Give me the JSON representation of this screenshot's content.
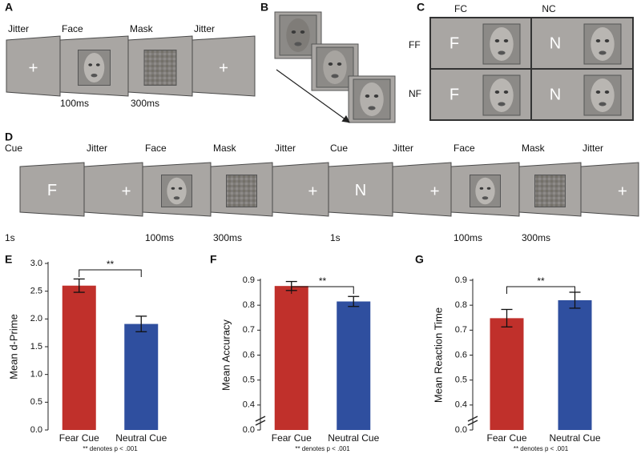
{
  "panels": {
    "A": {
      "label": "A",
      "frame_labels": [
        "Jitter",
        "Face",
        "Mask",
        "Jitter"
      ],
      "durations": [
        "100ms",
        "300ms"
      ]
    },
    "B": {
      "label": "B"
    },
    "C": {
      "label": "C",
      "columns": [
        "FC",
        "NC"
      ],
      "rows": [
        "FF",
        "NF"
      ],
      "cue_letters": [
        [
          "F",
          "N"
        ],
        [
          "F",
          "N"
        ]
      ]
    },
    "D": {
      "label": "D",
      "frame_labels": [
        "Cue",
        "Jitter",
        "Face",
        "Mask",
        "Jitter",
        "Cue",
        "Jitter",
        "Face",
        "Mask",
        "Jitter"
      ],
      "cue_letters": [
        "F",
        "N"
      ],
      "durations": [
        "1s",
        "100ms",
        "300ms",
        "1s",
        "100ms",
        "300ms"
      ]
    }
  },
  "chart_data": [
    {
      "type": "bar",
      "panel": "E",
      "ylabel": "Mean d-Prime",
      "categories": [
        "Fear Cue",
        "Neutral Cue"
      ],
      "values": [
        2.6,
        1.91
      ],
      "errors": [
        0.12,
        0.14
      ],
      "colors": [
        "#c0302b",
        "#2f4f9f"
      ],
      "ylim": [
        0,
        3
      ],
      "yticks": [
        {
          "value": 0,
          "label": "0.0"
        },
        0.5,
        {
          "value": 1,
          "label": "1.0"
        },
        1.5,
        {
          "value": 2,
          "label": "2.0"
        },
        2.5,
        {
          "value": 3,
          "label": "3.0"
        }
      ],
      "annotation": "**",
      "footnote": "** denotes p < .001"
    },
    {
      "type": "bar",
      "panel": "F",
      "ylabel": "Mean Accuracy",
      "categories": [
        "Fear Cue",
        "Neutral Cue"
      ],
      "values": [
        0.877,
        0.815
      ],
      "errors": [
        0.018,
        0.02
      ],
      "colors": [
        "#c0302b",
        "#2f4f9f"
      ],
      "ylim": [
        0,
        0.9
      ],
      "axis_break": [
        0,
        0.3
      ],
      "yticks": [
        {
          "value": 0,
          "label": "0.0"
        },
        0.4,
        0.5,
        0.6,
        0.7,
        0.8,
        0.9
      ],
      "annotation": "**",
      "footnote": "** denotes p < .001"
    },
    {
      "type": "bar",
      "panel": "G",
      "ylabel": "Mean Reaction Time",
      "categories": [
        "Fear Cue",
        "Neutral Cue"
      ],
      "values": [
        0.748,
        0.82
      ],
      "errors": [
        0.035,
        0.032
      ],
      "colors": [
        "#c0302b",
        "#2f4f9f"
      ],
      "ylim": [
        0,
        0.9
      ],
      "axis_break": [
        0,
        0.3
      ],
      "yticks": [
        {
          "value": 0,
          "label": "0.0"
        },
        0.4,
        0.5,
        0.6,
        0.7,
        0.8,
        0.9
      ],
      "annotation": "**",
      "footnote": "** denotes p < .001"
    }
  ]
}
